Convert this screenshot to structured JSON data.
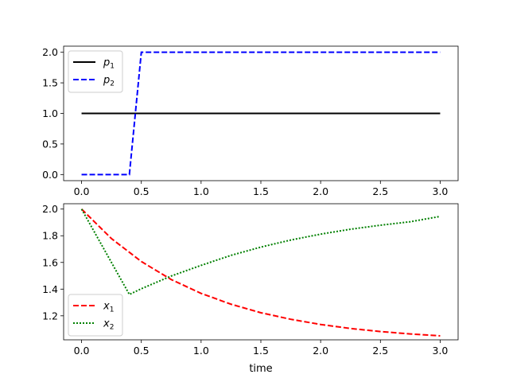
{
  "chart_data": [
    {
      "type": "line",
      "title": "",
      "xlabel": "",
      "ylabel": "",
      "xlim": [
        -0.15,
        3.15
      ],
      "ylim": [
        -0.1,
        2.1
      ],
      "xticks": [
        "0.0",
        "0.5",
        "1.0",
        "1.5",
        "2.0",
        "2.5",
        "3.0"
      ],
      "yticks": [
        "0.0",
        "0.5",
        "1.0",
        "1.5",
        "2.0"
      ],
      "grid": false,
      "legend_position": "upper-left",
      "series": [
        {
          "name": "p1",
          "label_base": "p",
          "label_sub": "1",
          "color": "#000000",
          "style": "solid",
          "x": [
            0.0,
            3.0
          ],
          "y": [
            1.0,
            1.0
          ]
        },
        {
          "name": "p2",
          "label_base": "p",
          "label_sub": "2",
          "color": "#0000ff",
          "style": "dashed",
          "x": [
            0.0,
            0.4,
            0.5,
            3.0
          ],
          "y": [
            0.0,
            0.0,
            2.0,
            2.0
          ]
        }
      ]
    },
    {
      "type": "line",
      "title": "",
      "xlabel": "time",
      "ylabel": "",
      "xlim": [
        -0.15,
        3.15
      ],
      "ylim": [
        1.02,
        2.04
      ],
      "xticks": [
        "0.0",
        "0.5",
        "1.0",
        "1.5",
        "2.0",
        "2.5",
        "3.0"
      ],
      "yticks": [
        "1.2",
        "1.4",
        "1.6",
        "1.8",
        "2.0"
      ],
      "grid": false,
      "legend_position": "lower-left",
      "series": [
        {
          "name": "x1",
          "label_base": "x",
          "label_sub": "1",
          "color": "#ff0000",
          "style": "dashed",
          "x": [
            0.0,
            0.25,
            0.5,
            0.75,
            1.0,
            1.25,
            1.5,
            1.75,
            2.0,
            2.25,
            2.5,
            2.75,
            3.0
          ],
          "y": [
            2.0,
            1.779,
            1.607,
            1.472,
            1.368,
            1.287,
            1.223,
            1.174,
            1.135,
            1.105,
            1.082,
            1.064,
            1.05
          ]
        },
        {
          "name": "x2",
          "label_base": "x",
          "label_sub": "2",
          "color": "#008000",
          "style": "dotted",
          "x": [
            0.0,
            0.4,
            0.5,
            0.75,
            1.0,
            1.25,
            1.5,
            1.75,
            2.0,
            2.25,
            2.5,
            2.75,
            3.0
          ],
          "y": [
            2.0,
            1.36,
            1.403,
            1.498,
            1.578,
            1.653,
            1.715,
            1.768,
            1.812,
            1.849,
            1.879,
            1.905,
            1.945
          ]
        }
      ]
    }
  ]
}
